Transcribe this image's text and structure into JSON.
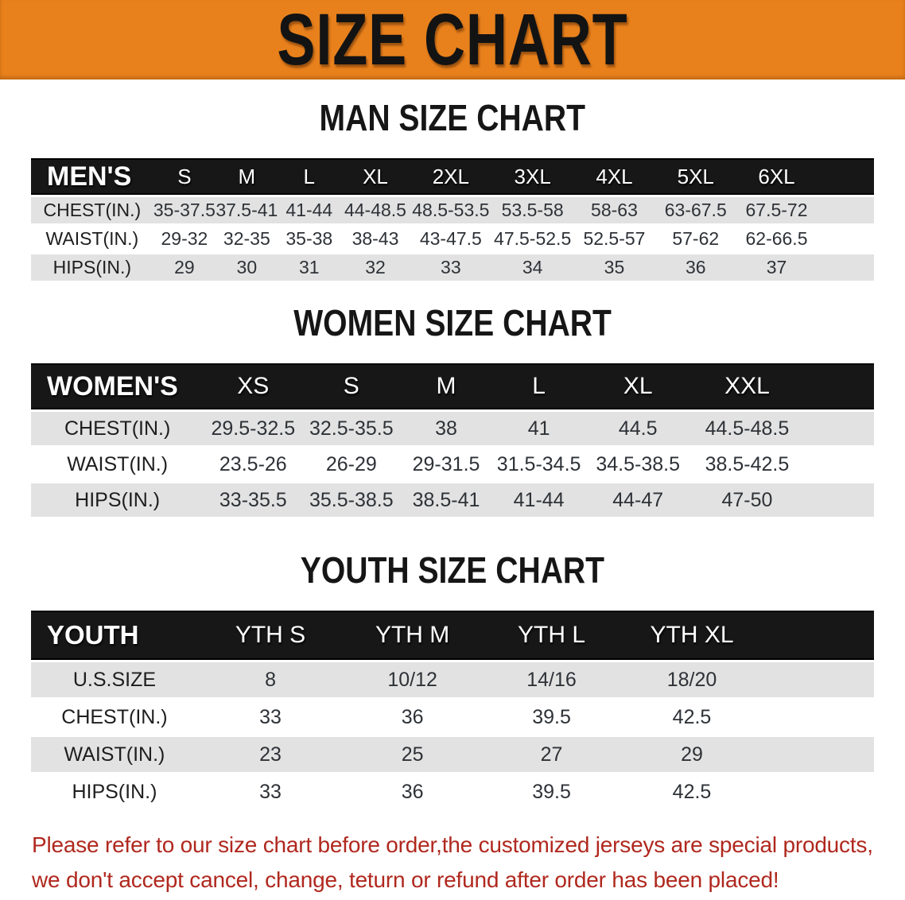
{
  "banner": {
    "title": "SIZE CHART"
  },
  "colors": {
    "banner_bg": "#e8811c",
    "band_bg": "#171717",
    "row_shade": "#e2e2e2",
    "disclaimer_red": "#b0281e"
  },
  "men_section": {
    "heading": "MAN SIZE CHART",
    "table": {
      "corner_label": "MEN'S",
      "columns": [
        "S",
        "M",
        "L",
        "XL",
        "2XL",
        "3XL",
        "4XL",
        "5XL",
        "6XL"
      ],
      "rows": [
        {
          "label": "CHEST(IN.)",
          "values": [
            "35-37.5",
            "37.5-41",
            "41-44",
            "44-48.5",
            "48.5-53.5",
            "53.5-58",
            "58-63",
            "63-67.5",
            "67.5-72"
          ]
        },
        {
          "label": "WAIST(IN.)",
          "values": [
            "29-32",
            "32-35",
            "35-38",
            "38-43",
            "43-47.5",
            "47.5-52.5",
            "52.5-57",
            "57-62",
            "62-66.5"
          ]
        },
        {
          "label": "HIPS(IN.)",
          "values": [
            "29",
            "30",
            "31",
            "32",
            "33",
            "34",
            "35",
            "36",
            "37"
          ]
        }
      ]
    }
  },
  "women_section": {
    "heading": "WOMEN SIZE CHART",
    "table": {
      "corner_label": "WOMEN'S",
      "columns": [
        "XS",
        "S",
        "M",
        "L",
        "XL",
        "XXL"
      ],
      "rows": [
        {
          "label": "CHEST(IN.)",
          "values": [
            "29.5-32.5",
            "32.5-35.5",
            "38",
            "41",
            "44.5",
            "44.5-48.5"
          ]
        },
        {
          "label": "WAIST(IN.)",
          "values": [
            "23.5-26",
            "26-29",
            "29-31.5",
            "31.5-34.5",
            "34.5-38.5",
            "38.5-42.5"
          ]
        },
        {
          "label": "HIPS(IN.)",
          "values": [
            "33-35.5",
            "35.5-38.5",
            "38.5-41",
            "41-44",
            "44-47",
            "47-50"
          ]
        }
      ]
    }
  },
  "youth_section": {
    "heading": "YOUTH SIZE CHART",
    "table": {
      "corner_label": "YOUTH",
      "columns": [
        "YTH S",
        "YTH M",
        "YTH L",
        "YTH XL"
      ],
      "rows": [
        {
          "label": "U.S.SIZE",
          "values": [
            "8",
            "10/12",
            "14/16",
            "18/20"
          ]
        },
        {
          "label": "CHEST(IN.)",
          "values": [
            "33",
            "36",
            "39.5",
            "42.5"
          ]
        },
        {
          "label": "WAIST(IN.)",
          "values": [
            "23",
            "25",
            "27",
            "29"
          ]
        },
        {
          "label": "HIPS(IN.)",
          "values": [
            "33",
            "36",
            "39.5",
            "42.5"
          ]
        }
      ]
    }
  },
  "disclaimer": {
    "line1": "Please refer to our size chart before order,the customized jerseys are special products,",
    "line2": "we don't accept cancel, change, teturn or refund after order has been placed!"
  }
}
